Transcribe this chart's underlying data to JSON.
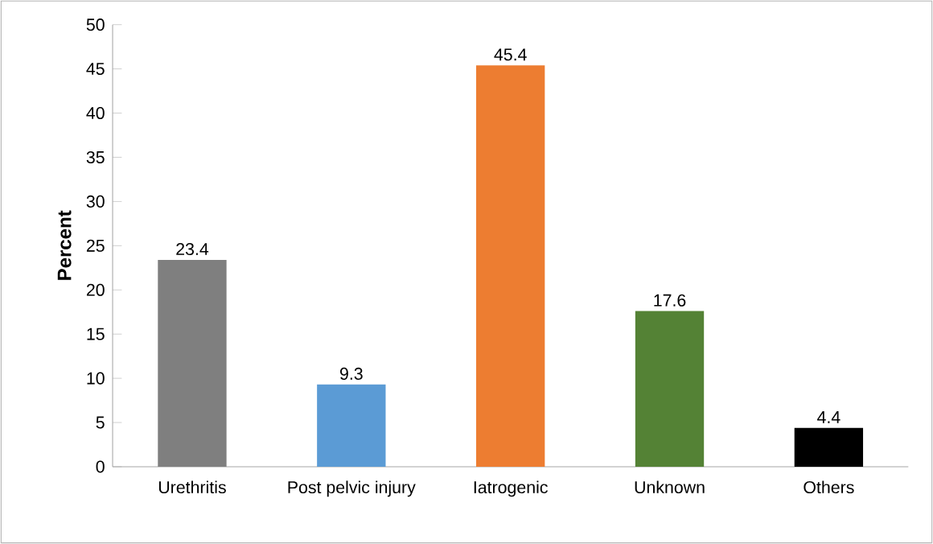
{
  "chart_data": {
    "type": "bar",
    "ylabel": "Percent",
    "categories": [
      "Urethritis",
      "Post pelvic injury",
      "Iatrogenic",
      "Unknown",
      "Others"
    ],
    "values": [
      23.4,
      9.3,
      45.4,
      17.6,
      4.4
    ],
    "colors": [
      "#7f7f7f",
      "#5b9bd5",
      "#ed7d31",
      "#548235",
      "#000000"
    ],
    "ylim": [
      0,
      50
    ],
    "yticks": [
      0,
      5,
      10,
      15,
      20,
      25,
      30,
      35,
      40,
      45,
      50
    ],
    "grid": false,
    "data_labels": true
  }
}
